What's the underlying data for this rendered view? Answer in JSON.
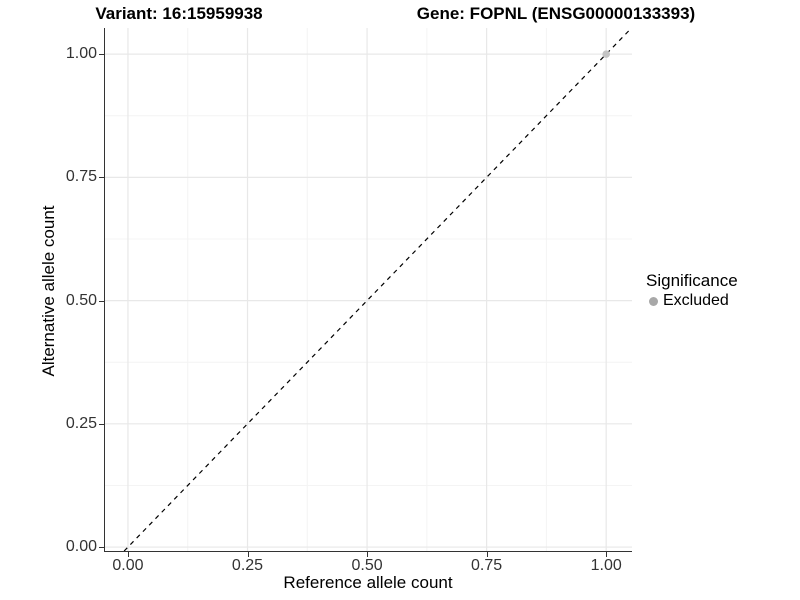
{
  "chart_data": {
    "type": "scatter",
    "titles": [
      "Variant: 16:15959938",
      "Gene: FOPNL (ENSG00000133393)"
    ],
    "xlabel": "Reference allele count",
    "ylabel": "Alternative allele count",
    "xlim": [
      -0.048,
      1.054
    ],
    "ylim": [
      -0.008,
      1.053
    ],
    "x_ticks": {
      "values": [
        0,
        0.25,
        0.5,
        0.75,
        1.0
      ],
      "labels": [
        "0.00",
        "0.25",
        "0.50",
        "0.75",
        "1.00"
      ]
    },
    "y_ticks": {
      "values": [
        0,
        0.25,
        0.5,
        0.75,
        1.0
      ],
      "labels": [
        "0.00",
        "0.25",
        "0.50",
        "0.75",
        "1.00"
      ]
    },
    "grid": {
      "major_color": "#e8e8e8",
      "minor_color": "#f4f4f4",
      "minor": true
    },
    "reference_line": {
      "slope": 1,
      "intercept": 0,
      "style": "dashed",
      "color": "#000000"
    },
    "series": [
      {
        "name": "Excluded",
        "color": "#c4c4c4",
        "marker": "circle",
        "points": [
          {
            "x": 1.0,
            "y": 1.0
          }
        ]
      }
    ],
    "legend": {
      "title": "Significance",
      "position": "right",
      "items": [
        {
          "label": "Excluded",
          "color": "#a8a8a8"
        }
      ]
    }
  }
}
